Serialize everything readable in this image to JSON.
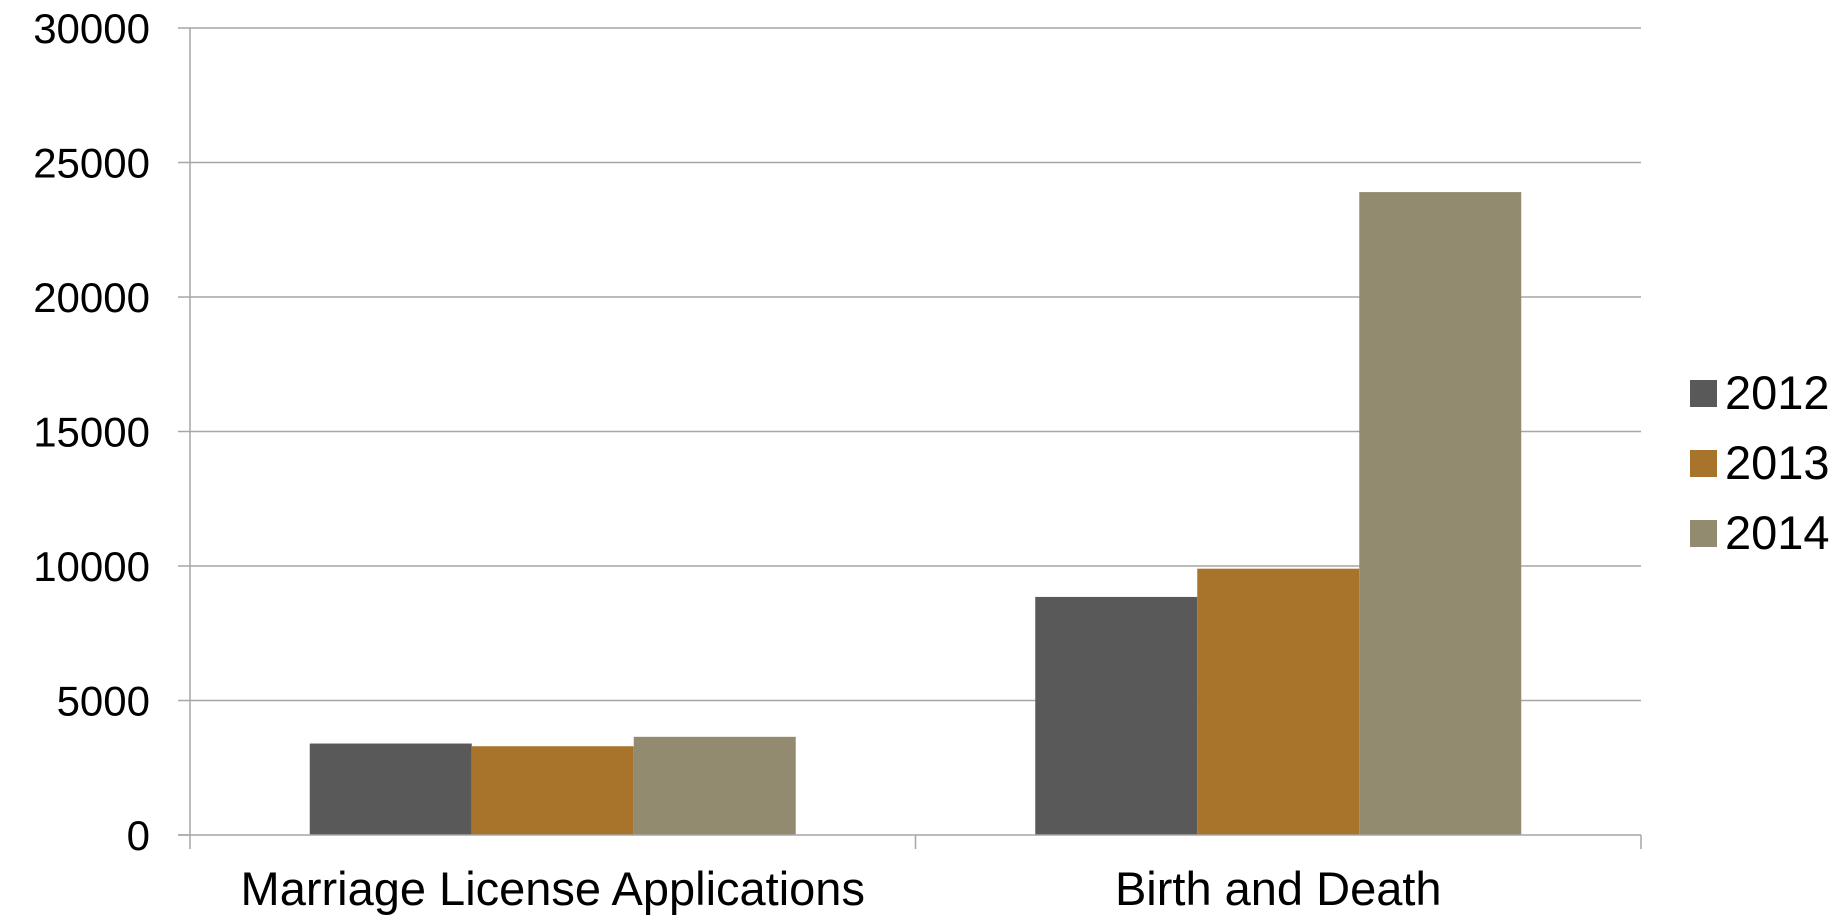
{
  "chart_data": {
    "type": "bar",
    "categories": [
      "Marriage License Applications",
      "Birth and Death"
    ],
    "series": [
      {
        "name": "2012",
        "values": [
          3400,
          8850
        ],
        "color": "#595959"
      },
      {
        "name": "2013",
        "values": [
          3300,
          9900
        ],
        "color": "#a8742b"
      },
      {
        "name": "2014",
        "values": [
          3650,
          23900
        ],
        "color": "#938b70"
      }
    ],
    "ylim": [
      0,
      30000
    ],
    "yticks": [
      0,
      5000,
      10000,
      15000,
      20000,
      25000,
      30000
    ],
    "grid": true,
    "legend": "right",
    "gridline_color": "#a6a6a6",
    "axis_color": "#a6a6a6"
  }
}
